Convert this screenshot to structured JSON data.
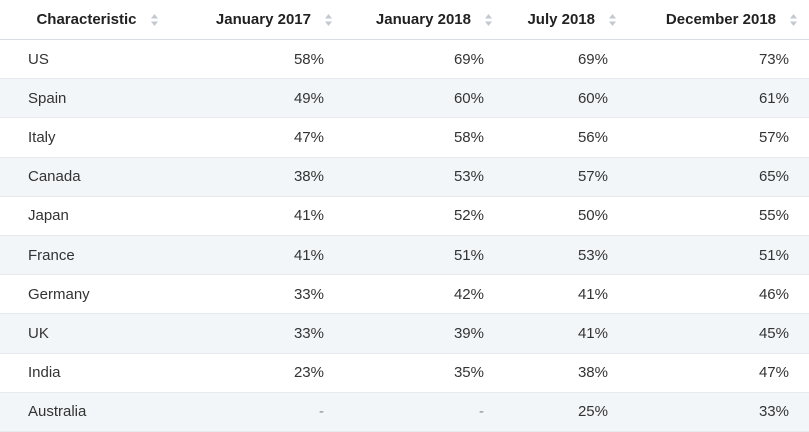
{
  "chart_data": {
    "type": "table",
    "columns": [
      "Characteristic",
      "January 2017",
      "January 2018",
      "July 2018",
      "December 2018"
    ],
    "rows": [
      {
        "name": "US",
        "values": [
          "58%",
          "69%",
          "69%",
          "73%"
        ]
      },
      {
        "name": "Spain",
        "values": [
          "49%",
          "60%",
          "60%",
          "61%"
        ]
      },
      {
        "name": "Italy",
        "values": [
          "47%",
          "58%",
          "56%",
          "57%"
        ]
      },
      {
        "name": "Canada",
        "values": [
          "38%",
          "53%",
          "57%",
          "65%"
        ]
      },
      {
        "name": "Japan",
        "values": [
          "41%",
          "52%",
          "50%",
          "55%"
        ]
      },
      {
        "name": "France",
        "values": [
          "41%",
          "51%",
          "53%",
          "51%"
        ]
      },
      {
        "name": "Germany",
        "values": [
          "33%",
          "42%",
          "41%",
          "46%"
        ]
      },
      {
        "name": "UK",
        "values": [
          "33%",
          "39%",
          "41%",
          "45%"
        ]
      },
      {
        "name": "India",
        "values": [
          "23%",
          "35%",
          "38%",
          "47%"
        ]
      },
      {
        "name": "Australia",
        "values": [
          "-",
          "-",
          "25%",
          "33%"
        ]
      }
    ]
  },
  "icons": {
    "sort": "sort-arrows-icon"
  },
  "colors": {
    "header_text": "#222222",
    "stripe": "#f3f6f9",
    "sort_icon": "#c3c9d0"
  }
}
